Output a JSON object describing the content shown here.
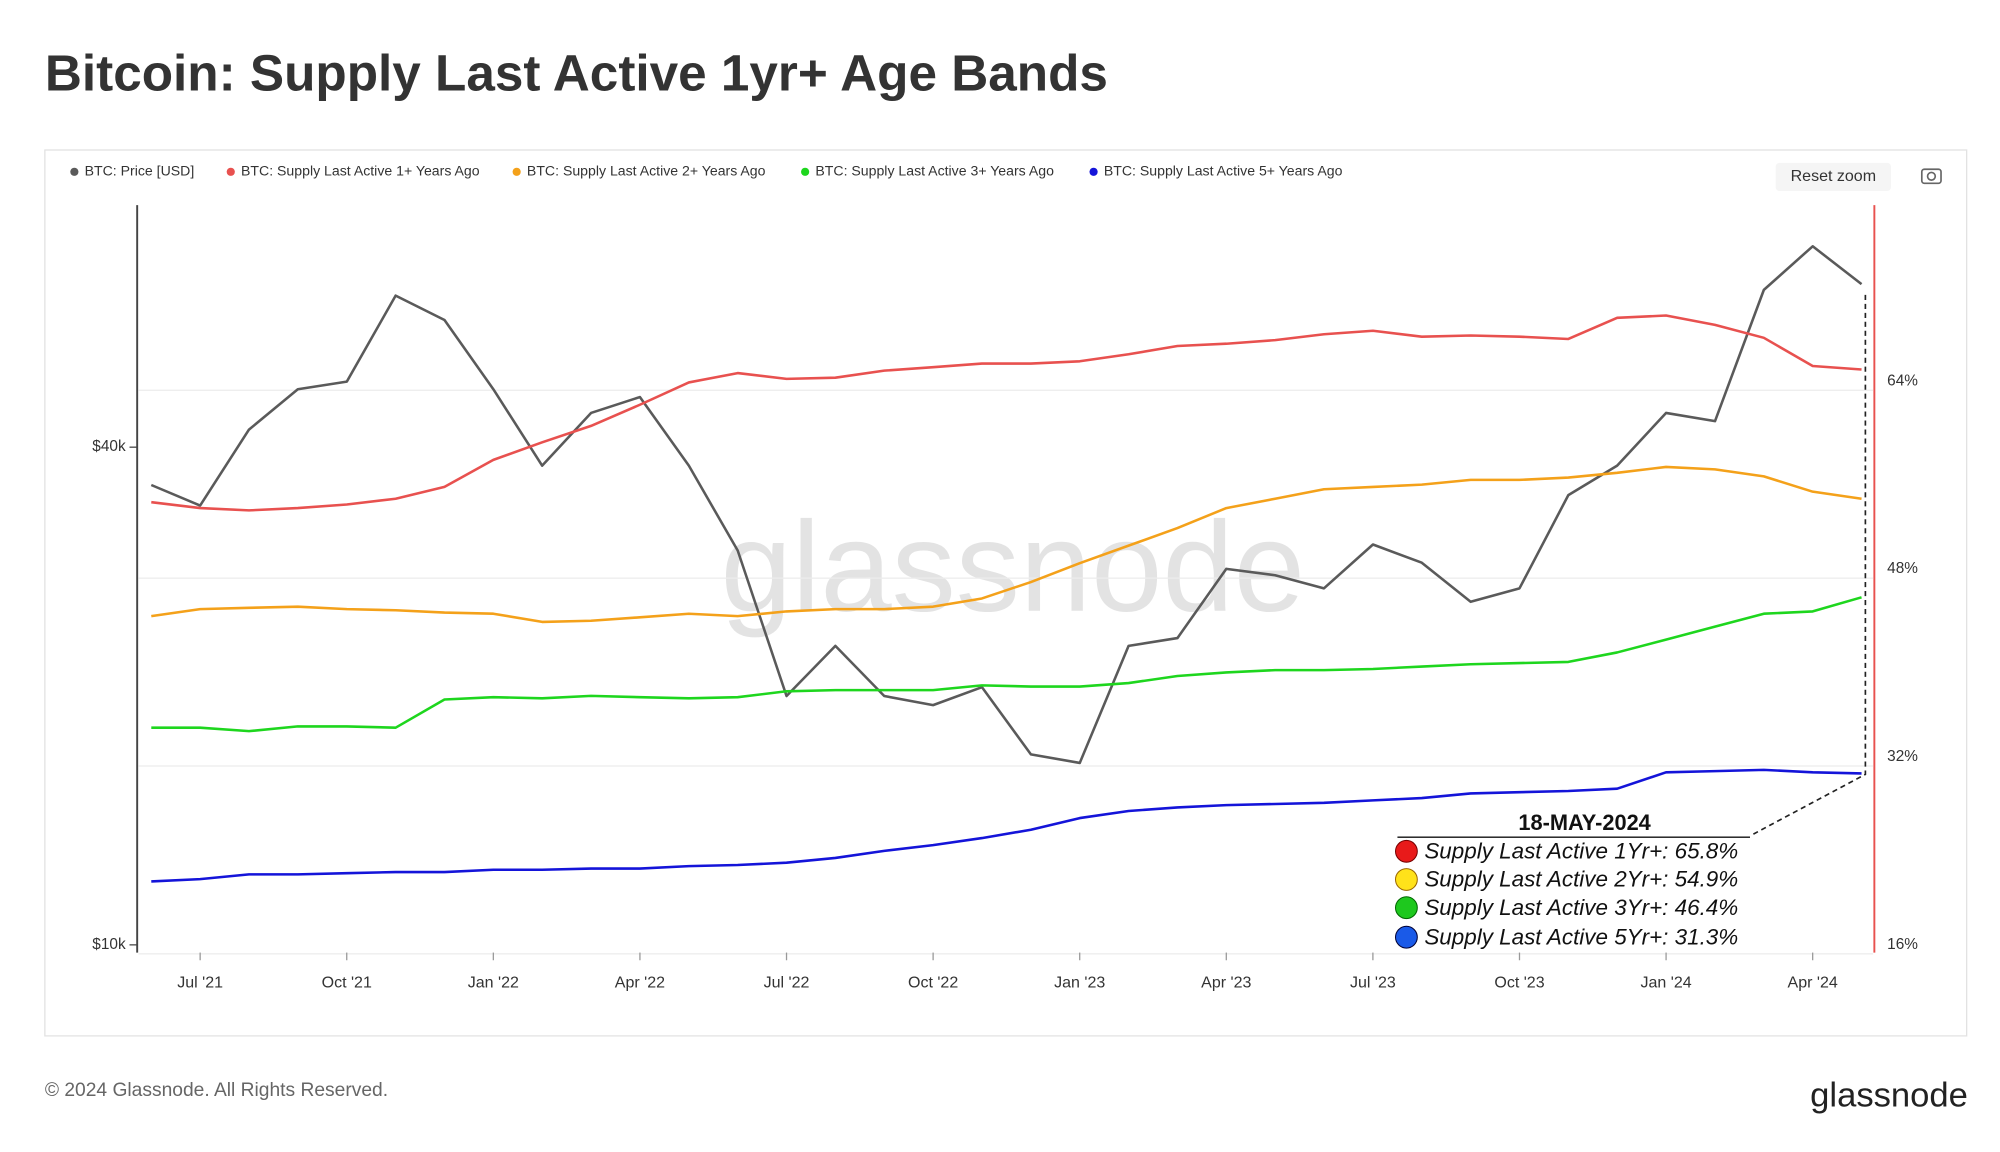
{
  "chart_data": {
    "type": "line",
    "title": "Bitcoin: Supply Last Active 1yr+ Age Bands",
    "watermark": "glassnode",
    "reset_button": "Reset zoom",
    "footer": "© 2024 Glassnode. All Rights Reserved.",
    "logo": "glassnode",
    "yscale": "log",
    "grid": true,
    "x": [
      "2021-06",
      "2021-07",
      "2021-08",
      "2021-09",
      "2021-10",
      "2021-11",
      "2021-12",
      "2022-01",
      "2022-02",
      "2022-03",
      "2022-04",
      "2022-05",
      "2022-06",
      "2022-07",
      "2022-08",
      "2022-09",
      "2022-10",
      "2022-11",
      "2022-12",
      "2023-01",
      "2023-02",
      "2023-03",
      "2023-04",
      "2023-05",
      "2023-06",
      "2023-07",
      "2023-08",
      "2023-09",
      "2023-10",
      "2023-11",
      "2023-12",
      "2024-01",
      "2024-02",
      "2024-03",
      "2024-04",
      "2024-05"
    ],
    "xlim": [
      "2021-06",
      "2024-05"
    ],
    "xticks": [
      {
        "value": "2021-07",
        "label": "Jul '21"
      },
      {
        "value": "2021-10",
        "label": "Oct '21"
      },
      {
        "value": "2022-01",
        "label": "Jan '22"
      },
      {
        "value": "2022-04",
        "label": "Apr '22"
      },
      {
        "value": "2022-07",
        "label": "Jul '22"
      },
      {
        "value": "2022-10",
        "label": "Oct '22"
      },
      {
        "value": "2023-01",
        "label": "Jan '23"
      },
      {
        "value": "2023-04",
        "label": "Apr '23"
      },
      {
        "value": "2023-07",
        "label": "Jul '23"
      },
      {
        "value": "2023-10",
        "label": "Oct '23"
      },
      {
        "value": "2024-01",
        "label": "Jan '24"
      },
      {
        "value": "2024-04",
        "label": "Apr '24"
      }
    ],
    "ylim": [
      10000,
      78500
    ],
    "yticks": [
      {
        "value": 10000,
        "label": "$10k"
      },
      {
        "value": 40000,
        "label": "$40k"
      }
    ],
    "y2lim": [
      16,
      79
    ],
    "y2ticks": [
      {
        "value": 16,
        "label": "16%"
      },
      {
        "value": 32,
        "label": "32%"
      },
      {
        "value": 48,
        "label": "48%"
      },
      {
        "value": 64,
        "label": "64%"
      }
    ],
    "series": [
      {
        "name": "BTC: Price [USD]",
        "color": "#5a5a5a",
        "axis": "y",
        "values": [
          36000,
          34000,
          42000,
          47000,
          48000,
          61000,
          57000,
          47000,
          38000,
          44000,
          46000,
          38000,
          30000,
          20000,
          23000,
          20000,
          19500,
          20500,
          17000,
          16600,
          23000,
          23500,
          28500,
          28000,
          27000,
          30500,
          29000,
          26000,
          27000,
          35000,
          38000,
          44000,
          43000,
          62000,
          70000,
          63000
        ]
      },
      {
        "name": "BTC: Supply Last Active 1+ Years Ago",
        "color": "#e8514f",
        "axis": "y2",
        "values": [
          53.7,
          53.2,
          53.0,
          53.2,
          53.5,
          54.0,
          55.0,
          57.3,
          58.8,
          60.2,
          62.0,
          63.9,
          64.7,
          64.2,
          64.3,
          64.9,
          65.2,
          65.5,
          65.5,
          65.7,
          66.3,
          67.0,
          67.2,
          67.5,
          68.0,
          68.3,
          67.8,
          67.9,
          67.8,
          67.6,
          69.4,
          69.6,
          68.8,
          67.7,
          65.3,
          65.0
        ]
      },
      {
        "name": "BTC: Supply Last Active 2+ Years Ago",
        "color": "#f4a11a",
        "axis": "y2",
        "values": [
          44.0,
          44.6,
          44.7,
          44.8,
          44.6,
          44.5,
          44.3,
          44.2,
          43.5,
          43.6,
          43.9,
          44.2,
          44.0,
          44.4,
          44.6,
          44.6,
          44.8,
          45.5,
          46.9,
          48.5,
          50.0,
          51.5,
          53.2,
          54.0,
          54.8,
          55.0,
          55.2,
          55.6,
          55.6,
          55.8,
          56.2,
          56.7,
          56.5,
          55.9,
          54.6,
          54.0
        ]
      },
      {
        "name": "BTC: Supply Last Active 3+ Years Ago",
        "color": "#1ed61e",
        "axis": "y2",
        "values": [
          34.5,
          34.5,
          34.2,
          34.6,
          34.6,
          34.5,
          36.9,
          37.1,
          37.0,
          37.2,
          37.1,
          37.0,
          37.1,
          37.6,
          37.7,
          37.7,
          37.7,
          38.1,
          38.0,
          38.0,
          38.3,
          38.9,
          39.2,
          39.4,
          39.4,
          39.5,
          39.7,
          39.9,
          40.0,
          40.1,
          40.9,
          42.0,
          43.1,
          44.2,
          44.4,
          45.6
        ]
      },
      {
        "name": "BTC: Supply Last Active 5+ Years Ago",
        "color": "#1414d9",
        "axis": "y2",
        "values": [
          21.4,
          21.6,
          22.0,
          22.0,
          22.1,
          22.2,
          22.2,
          22.4,
          22.4,
          22.5,
          22.5,
          22.7,
          22.8,
          23.0,
          23.4,
          24.0,
          24.5,
          25.1,
          25.8,
          26.8,
          27.4,
          27.7,
          27.9,
          28.0,
          28.1,
          28.3,
          28.5,
          28.9,
          29.0,
          29.1,
          29.3,
          30.7,
          30.8,
          30.9,
          30.7,
          30.6
        ]
      }
    ],
    "annotation": {
      "date": "18-MAY-2024",
      "lines": [
        "Supply Last Active 1Yr+: 65.8%",
        "Supply Last Active 2Yr+: 54.9%",
        "Supply Last Active 3Yr+: 46.4%",
        "Supply Last Active 5Yr+: 31.3%"
      ]
    }
  }
}
